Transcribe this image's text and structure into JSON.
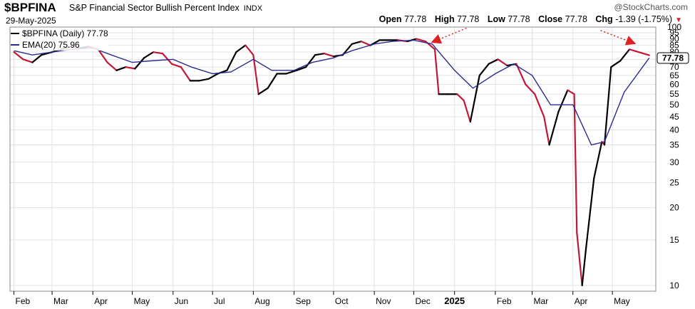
{
  "header": {
    "symbol": "$BPFINA",
    "description": "S&P Financial Sector Bullish Percent Index",
    "exchange": "INDX",
    "date": "29-May-2025",
    "source": "@StockCharts.com",
    "open_label": "Open",
    "open": "77.78",
    "high_label": "High",
    "high": "77.78",
    "low_label": "Low",
    "low": "77.78",
    "close_label": "Close",
    "close": "77.78",
    "chg_label": "Chg",
    "chg": "-1.39 (-1.75%)",
    "chg_icon": "triangle-down-icon"
  },
  "legend": {
    "price": "$BPFINA (Daily) 77.78",
    "ema": "EMA(20) 75.96"
  },
  "last_value_label": "77.78",
  "colors": {
    "price_up": "#000000",
    "price_down": "#c21838",
    "ema": "#2b2b8f",
    "annotation_arrow": "#e02020",
    "grid": "#e2e2e2"
  },
  "chart_data": {
    "type": "line",
    "scale": "log",
    "ylim": [
      9.5,
      100
    ],
    "ytick_labels": [
      "100",
      "95",
      "90",
      "85",
      "80",
      "75",
      "70",
      "65",
      "60",
      "55",
      "50",
      "45",
      "40",
      "35",
      "30",
      "25",
      "20",
      "15",
      "10"
    ],
    "xtick_labels": [
      "Feb",
      "Mar",
      "Apr",
      "May",
      "Jun",
      "Jul",
      "Aug",
      "Sep",
      "Oct",
      "Nov",
      "Dec",
      "2025",
      "Feb",
      "Mar",
      "Apr",
      "May"
    ],
    "grid": true,
    "legend_position": "top-left",
    "series": [
      {
        "name": "$BPFINA (Daily)",
        "points": [
          [
            "2024-02-01",
            80
          ],
          [
            "2024-02-08",
            75
          ],
          [
            "2024-02-15",
            73
          ],
          [
            "2024-02-22",
            78
          ],
          [
            "2024-03-01",
            80
          ],
          [
            "2024-03-08",
            82
          ],
          [
            "2024-03-15",
            84
          ],
          [
            "2024-03-22",
            83
          ],
          [
            "2024-03-29",
            84
          ],
          [
            "2024-04-05",
            82
          ],
          [
            "2024-04-12",
            73
          ],
          [
            "2024-04-19",
            68
          ],
          [
            "2024-04-26",
            70
          ],
          [
            "2024-05-03",
            69
          ],
          [
            "2024-05-10",
            76
          ],
          [
            "2024-05-17",
            80
          ],
          [
            "2024-05-24",
            79
          ],
          [
            "2024-05-31",
            72
          ],
          [
            "2024-06-07",
            70
          ],
          [
            "2024-06-14",
            62
          ],
          [
            "2024-06-21",
            62
          ],
          [
            "2024-06-28",
            63
          ],
          [
            "2024-07-05",
            66
          ],
          [
            "2024-07-12",
            68
          ],
          [
            "2024-07-19",
            80
          ],
          [
            "2024-07-26",
            85
          ],
          [
            "2024-08-01",
            78
          ],
          [
            "2024-08-05",
            55
          ],
          [
            "2024-08-12",
            58
          ],
          [
            "2024-08-19",
            66
          ],
          [
            "2024-08-26",
            66
          ],
          [
            "2024-09-03",
            68
          ],
          [
            "2024-09-10",
            70
          ],
          [
            "2024-09-17",
            78
          ],
          [
            "2024-09-24",
            79
          ],
          [
            "2024-10-01",
            77
          ],
          [
            "2024-10-08",
            78
          ],
          [
            "2024-10-15",
            86
          ],
          [
            "2024-10-22",
            88
          ],
          [
            "2024-10-29",
            85
          ],
          [
            "2024-11-05",
            89
          ],
          [
            "2024-11-12",
            89
          ],
          [
            "2024-11-19",
            89
          ],
          [
            "2024-11-26",
            88
          ],
          [
            "2024-12-03",
            90
          ],
          [
            "2024-12-10",
            88
          ],
          [
            "2024-12-17",
            82
          ],
          [
            "2024-12-20",
            55
          ],
          [
            "2024-12-27",
            55
          ],
          [
            "2025-01-03",
            55
          ],
          [
            "2025-01-08",
            52
          ],
          [
            "2025-01-13",
            43
          ],
          [
            "2025-01-20",
            65
          ],
          [
            "2025-01-27",
            72
          ],
          [
            "2025-02-03",
            75
          ],
          [
            "2025-02-10",
            71
          ],
          [
            "2025-02-17",
            72
          ],
          [
            "2025-02-24",
            60
          ],
          [
            "2025-03-03",
            55
          ],
          [
            "2025-03-10",
            45
          ],
          [
            "2025-03-14",
            35
          ],
          [
            "2025-03-21",
            47
          ],
          [
            "2025-03-28",
            57
          ],
          [
            "2025-04-02",
            55
          ],
          [
            "2025-04-04",
            16
          ],
          [
            "2025-04-08",
            10
          ],
          [
            "2025-04-11",
            14
          ],
          [
            "2025-04-17",
            26
          ],
          [
            "2025-04-23",
            36
          ],
          [
            "2025-04-25",
            35
          ],
          [
            "2025-04-30",
            70
          ],
          [
            "2025-05-07",
            74
          ],
          [
            "2025-05-14",
            82
          ],
          [
            "2025-05-21",
            80
          ],
          [
            "2025-05-29",
            77.78
          ]
        ]
      },
      {
        "name": "EMA(20)",
        "points": [
          [
            "2024-02-01",
            81
          ],
          [
            "2024-02-15",
            78
          ],
          [
            "2024-03-01",
            80
          ],
          [
            "2024-03-15",
            82
          ],
          [
            "2024-04-01",
            83
          ],
          [
            "2024-04-15",
            78
          ],
          [
            "2024-05-01",
            73
          ],
          [
            "2024-05-15",
            74
          ],
          [
            "2024-06-01",
            75
          ],
          [
            "2024-06-15",
            70
          ],
          [
            "2024-07-01",
            66
          ],
          [
            "2024-07-15",
            67
          ],
          [
            "2024-08-01",
            75
          ],
          [
            "2024-08-15",
            68
          ],
          [
            "2024-09-01",
            68
          ],
          [
            "2024-09-15",
            73
          ],
          [
            "2024-10-01",
            76
          ],
          [
            "2024-10-15",
            81
          ],
          [
            "2024-11-01",
            86
          ],
          [
            "2024-11-15",
            88
          ],
          [
            "2024-12-01",
            89
          ],
          [
            "2024-12-15",
            86
          ],
          [
            "2025-01-01",
            68
          ],
          [
            "2025-01-15",
            58
          ],
          [
            "2025-02-01",
            66
          ],
          [
            "2025-02-15",
            72
          ],
          [
            "2025-03-01",
            65
          ],
          [
            "2025-03-15",
            50
          ],
          [
            "2025-04-01",
            50
          ],
          [
            "2025-04-15",
            35
          ],
          [
            "2025-04-25",
            36
          ],
          [
            "2025-05-10",
            56
          ],
          [
            "2025-05-29",
            75.96
          ]
        ]
      }
    ],
    "annotations": [
      {
        "type": "arrow",
        "from": [
          "2025-01-10",
          99
        ],
        "to": [
          "2024-12-14",
          87
        ]
      },
      {
        "type": "arrow",
        "from": [
          "2025-04-22",
          97
        ],
        "to": [
          "2025-05-19",
          86
        ]
      }
    ]
  }
}
